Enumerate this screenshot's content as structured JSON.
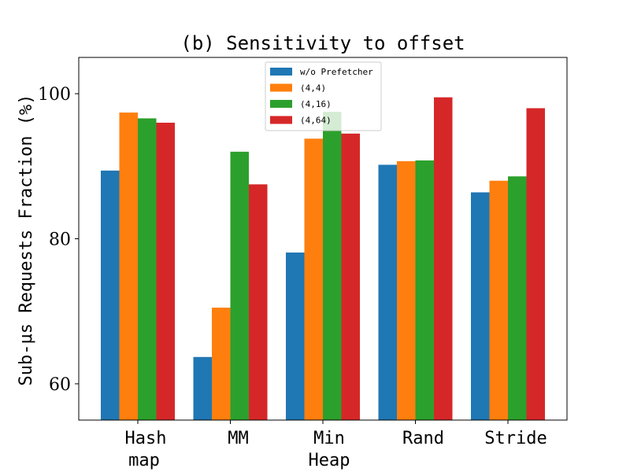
{
  "chart_data": {
    "type": "bar",
    "title": "(b) Sensitivity to offset",
    "ylabel": "Sub-μs Requests Fraction (%)",
    "xlabel": "",
    "ylim": [
      55,
      105
    ],
    "yticks": [
      60,
      80,
      100
    ],
    "categories": [
      [
        "Hash",
        "map"
      ],
      [
        "MM"
      ],
      [
        "Min",
        "Heap"
      ],
      [
        "Rand"
      ],
      [
        "Stride"
      ]
    ],
    "series": [
      {
        "name": "w/o Prefetcher",
        "color": "#1f77b4",
        "values": [
          89.4,
          63.7,
          78.1,
          90.2,
          86.4
        ]
      },
      {
        "name": "(4,4)",
        "color": "#ff7f0e",
        "values": [
          97.4,
          70.5,
          93.8,
          90.7,
          88.0
        ]
      },
      {
        "name": "(4,16)",
        "color": "#2ca02c",
        "values": [
          96.6,
          92.0,
          97.5,
          90.8,
          88.6
        ]
      },
      {
        "name": "(4,64)",
        "color": "#d62728",
        "values": [
          96.0,
          87.5,
          94.5,
          99.5,
          98.0
        ]
      }
    ],
    "legend_position": "top-center",
    "grid": false
  }
}
